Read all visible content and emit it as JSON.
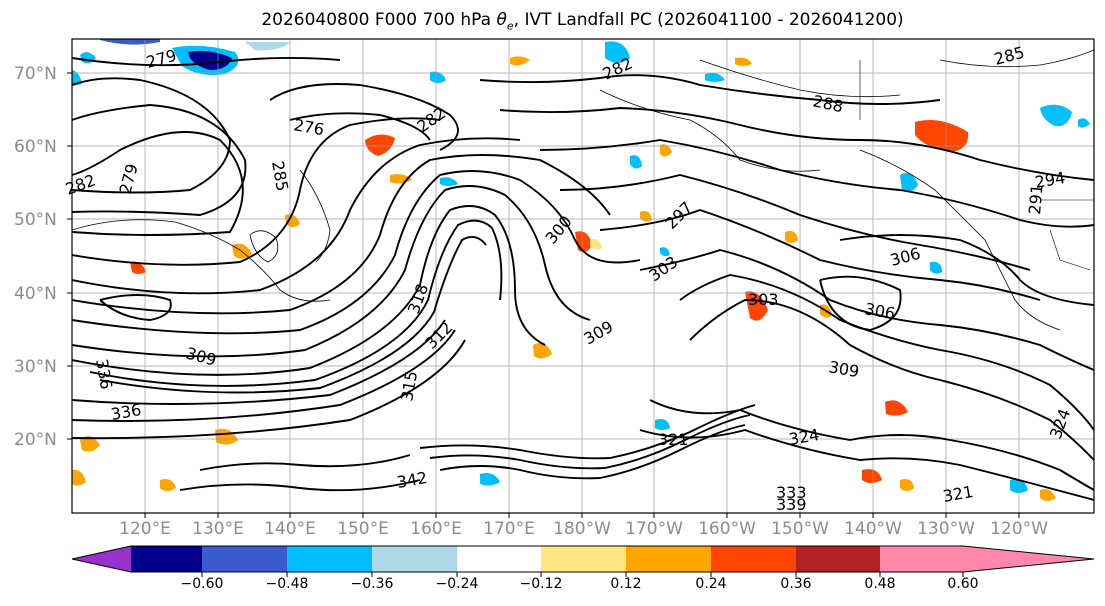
{
  "title": {
    "prefix": "2026040800 F000 700 hPa ",
    "theta": "θ",
    "sub": "e",
    "suffix": ", IVT Landfall PC (2026041100 - 2026041200)"
  },
  "lat_labels": [
    "70°N",
    "60°N",
    "50°N",
    "40°N",
    "30°N",
    "20°N"
  ],
  "lon_labels": [
    "120°E",
    "130°E",
    "140°E",
    "150°E",
    "160°E",
    "170°E",
    "180°W",
    "170°W",
    "160°W",
    "150°W",
    "140°W",
    "130°W",
    "120°W"
  ],
  "contour_labels": [
    {
      "text": "279"
    },
    {
      "text": "282"
    },
    {
      "text": "285"
    },
    {
      "text": "276"
    },
    {
      "text": "282"
    },
    {
      "text": "288"
    },
    {
      "text": "279"
    },
    {
      "text": "282"
    },
    {
      "text": "285"
    },
    {
      "text": "291"
    },
    {
      "text": "294"
    },
    {
      "text": "300"
    },
    {
      "text": "297"
    },
    {
      "text": "303"
    },
    {
      "text": "306"
    },
    {
      "text": "303"
    },
    {
      "text": "306"
    },
    {
      "text": "309"
    },
    {
      "text": "309"
    },
    {
      "text": "312"
    },
    {
      "text": "315"
    },
    {
      "text": "318"
    },
    {
      "text": "309"
    },
    {
      "text": "336"
    },
    {
      "text": "336"
    },
    {
      "text": "321"
    },
    {
      "text": "324"
    },
    {
      "text": "333"
    },
    {
      "text": "339"
    },
    {
      "text": "321"
    },
    {
      "text": "324"
    },
    {
      "text": "342"
    }
  ],
  "colorbar": {
    "colors": [
      "#9932cc",
      "#00008b",
      "#3b5bcc",
      "#00bfff",
      "#add8e6",
      "#ffffff",
      "#ffe680",
      "#ffa500",
      "#ff4500",
      "#b22222",
      "#ff88aa"
    ],
    "ticks": [
      "−0.60",
      "−0.48",
      "−0.36",
      "−0.24",
      "−0.12",
      "0.12",
      "0.24",
      "0.36",
      "0.48",
      "0.60"
    ]
  }
}
